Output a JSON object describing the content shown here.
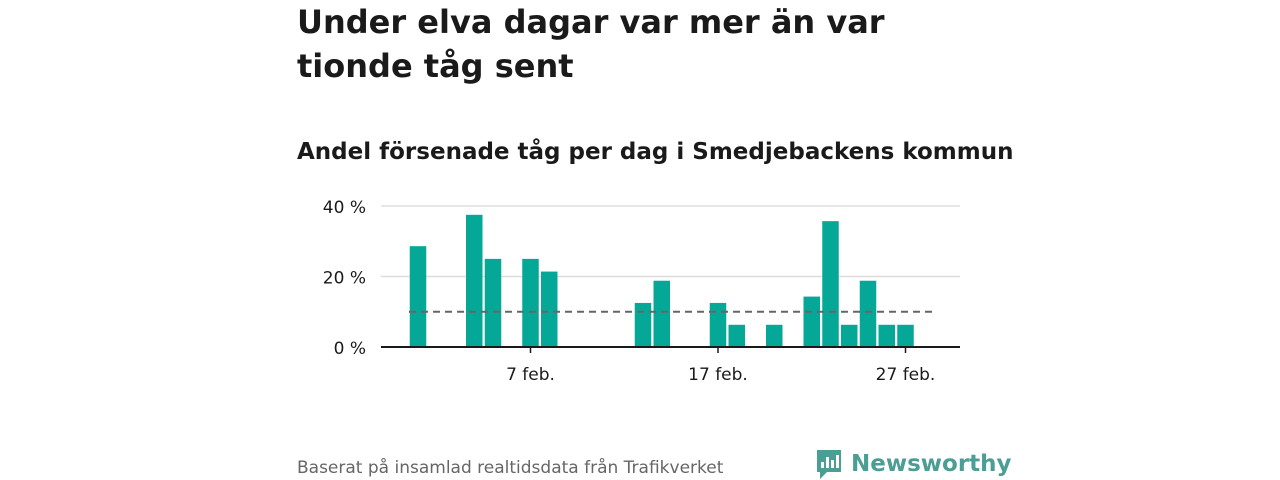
{
  "title": "Under elva dagar var mer än var tionde tåg sent",
  "subtitle": "Andel försenade tåg per dag i Smedjebackens kommun",
  "source": "Baserat på insamlad realtidsdata från Trafikverket",
  "brand": {
    "name": "Newsworthy",
    "color": "#4a9e93"
  },
  "colors": {
    "bar": "#05a896",
    "reference_line": "#666666",
    "grid": "#dddddd",
    "axis": "#1a1a1a"
  },
  "chart_data": {
    "type": "bar",
    "title": "Andel försenade tåg per dag i Smedjebackens kommun",
    "xlabel": "",
    "ylabel": "",
    "ylim": [
      0,
      40
    ],
    "yticks": [
      0,
      20,
      40
    ],
    "ytick_labels": [
      "0 %",
      "20 %",
      "40 %"
    ],
    "x_range": [
      "2019-02-01",
      "2019-02-28"
    ],
    "xticks": [
      "2019-02-07",
      "2019-02-17",
      "2019-02-27"
    ],
    "xtick_labels": [
      "7 feb.",
      "17 feb.",
      "27 feb."
    ],
    "categories": [
      "2019-02-01",
      "2019-02-02",
      "2019-02-03",
      "2019-02-04",
      "2019-02-05",
      "2019-02-06",
      "2019-02-07",
      "2019-02-08",
      "2019-02-09",
      "2019-02-10",
      "2019-02-11",
      "2019-02-12",
      "2019-02-13",
      "2019-02-14",
      "2019-02-15",
      "2019-02-16",
      "2019-02-17",
      "2019-02-18",
      "2019-02-19",
      "2019-02-20",
      "2019-02-21",
      "2019-02-22",
      "2019-02-23",
      "2019-02-24",
      "2019-02-25",
      "2019-02-26",
      "2019-02-27",
      "2019-02-28"
    ],
    "values": [
      28.6,
      0,
      0,
      37.5,
      25,
      0,
      25,
      21.4,
      0,
      0,
      0,
      0,
      12.5,
      18.8,
      0,
      0,
      12.5,
      6.3,
      0,
      6.3,
      0,
      14.3,
      35.7,
      6.3,
      18.8,
      6.3,
      6.3,
      0
    ],
    "reference_line": {
      "value": 10,
      "style": "dashed"
    },
    "grid": true,
    "legend": false
  }
}
